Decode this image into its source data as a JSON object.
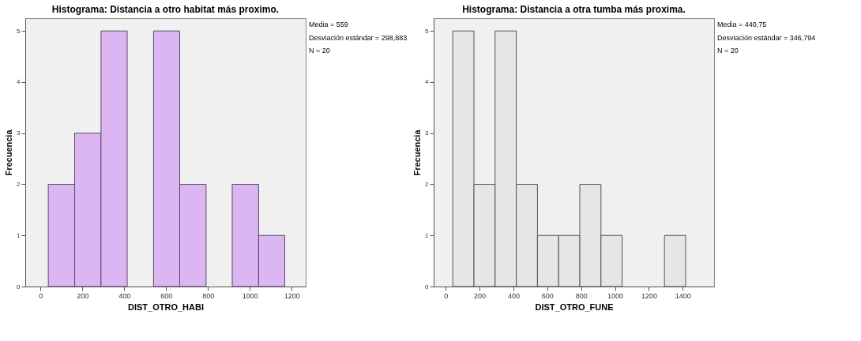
{
  "chart_data": [
    {
      "type": "histogram",
      "title": "Histograma: Distancia a otro habitat más proximo.",
      "xlabel": "DIST_OTRO_HABI",
      "ylabel": "Frecuencia",
      "color": "#dbb6f2",
      "bins": [
        37,
        163,
        289,
        414,
        540,
        665,
        791,
        916,
        1042,
        1167
      ],
      "values": [
        2,
        3,
        5,
        0,
        5,
        2,
        0,
        2,
        1
      ],
      "xlim": [
        -73,
        1267
      ],
      "xticks": [
        0,
        200,
        400,
        600,
        800,
        1000,
        1200
      ],
      "ylim": [
        0,
        5.25
      ],
      "yticks": [
        0,
        1,
        2,
        3,
        4,
        5
      ],
      "grid": false,
      "annotations": [
        "Media = 559",
        "Desviación estándar = 298,883",
        "N = 20"
      ]
    },
    {
      "type": "histogram",
      "title": "Histograma: Distancia a otra tumba más proxima.",
      "xlabel": "DIST_OTRO_FUNE",
      "ylabel": "Frecuencia",
      "color": "#e6e6e6",
      "bins": [
        42,
        167,
        292,
        417,
        542,
        667,
        792,
        917,
        1042,
        1167,
        1292,
        1417
      ],
      "values": [
        5,
        2,
        5,
        2,
        1,
        1,
        2,
        1,
        0,
        0,
        1
      ],
      "xlim": [
        -71,
        1585
      ],
      "xticks": [
        0,
        200,
        400,
        600,
        800,
        1000,
        1200,
        1400
      ],
      "ylim": [
        0,
        5.25
      ],
      "yticks": [
        0,
        1,
        2,
        3,
        4,
        5
      ],
      "grid": false,
      "annotations": [
        "Media = 440,75",
        "Desviación estándar = 346,794",
        "N = 20"
      ]
    }
  ]
}
